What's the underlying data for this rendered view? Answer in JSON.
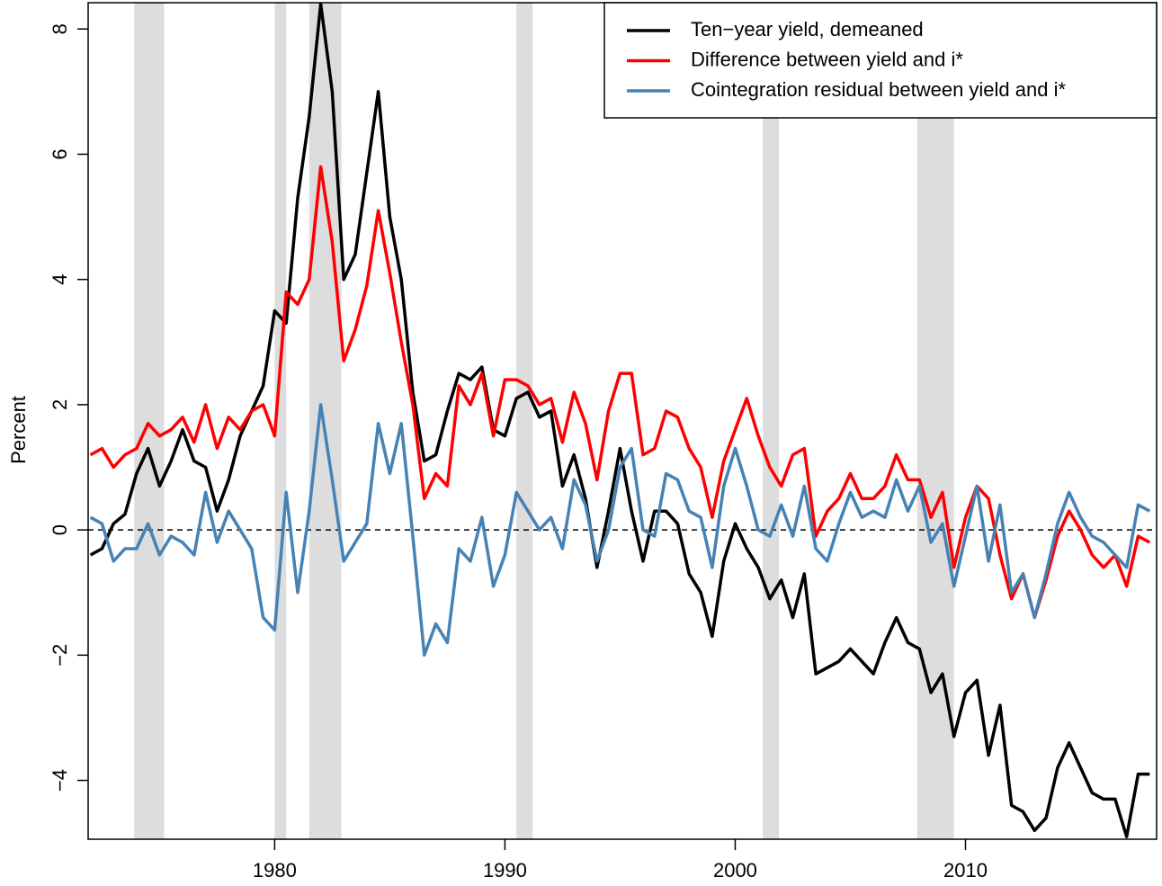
{
  "chart_data": {
    "type": "line",
    "ylabel": "Percent",
    "xlim": [
      1971.9,
      2018.3
    ],
    "ylim": [
      -4.94,
      8.42
    ],
    "xticks": [
      1980,
      1990,
      2000,
      2010
    ],
    "yticks": [
      {
        "value": -4,
        "label": "−4"
      },
      {
        "value": -2,
        "label": "−2"
      },
      0,
      2,
      4,
      6,
      8
    ],
    "hline": 0,
    "legend": "topright",
    "shading_color": "#dddddd",
    "recessions": [
      [
        1973.9,
        1975.2
      ],
      [
        1980.0,
        1980.5
      ],
      [
        1981.5,
        1982.9
      ],
      [
        1990.5,
        1991.2
      ],
      [
        2001.2,
        2001.9
      ],
      [
        2007.9,
        2009.5
      ]
    ],
    "x": [
      1972,
      1972.5,
      1973,
      1973.5,
      1974,
      1974.5,
      1975,
      1975.5,
      1976,
      1976.5,
      1977,
      1977.5,
      1978,
      1978.5,
      1979,
      1979.5,
      1980,
      1980.5,
      1981,
      1981.5,
      1982,
      1982.5,
      1983,
      1983.5,
      1984,
      1984.5,
      1985,
      1985.5,
      1986,
      1986.5,
      1987,
      1987.5,
      1988,
      1988.5,
      1989,
      1989.5,
      1990,
      1990.5,
      1991,
      1991.5,
      1992,
      1992.5,
      1993,
      1993.5,
      1994,
      1994.5,
      1995,
      1995.5,
      1996,
      1996.5,
      1997,
      1997.5,
      1998,
      1998.5,
      1999,
      1999.5,
      2000,
      2000.5,
      2001,
      2001.5,
      2002,
      2002.5,
      2003,
      2003.5,
      2004,
      2004.5,
      2005,
      2005.5,
      2006,
      2006.5,
      2007,
      2007.5,
      2008,
      2008.5,
      2009,
      2009.5,
      2010,
      2010.5,
      2011,
      2011.5,
      2012,
      2012.5,
      2013,
      2013.5,
      2014,
      2014.5,
      2015,
      2015.5,
      2016,
      2016.5,
      2017,
      2017.5,
      2018
    ],
    "series": [
      {
        "name": "Ten−year yield, demeaned",
        "color": "#000000",
        "values": [
          -0.4,
          -0.3,
          0.1,
          0.25,
          0.9,
          1.3,
          0.7,
          1.1,
          1.6,
          1.1,
          1.0,
          0.3,
          0.8,
          1.5,
          1.9,
          2.3,
          3.5,
          3.3,
          5.3,
          6.6,
          8.4,
          7.0,
          4.0,
          4.4,
          5.7,
          7.0,
          5.0,
          4.0,
          2.2,
          1.1,
          1.2,
          1.9,
          2.5,
          2.4,
          2.6,
          1.6,
          1.5,
          2.1,
          2.2,
          1.8,
          1.9,
          0.7,
          1.2,
          0.5,
          -0.6,
          0.3,
          1.3,
          0.3,
          -0.5,
          0.3,
          0.3,
          0.1,
          -0.7,
          -1.0,
          -1.7,
          -0.5,
          0.1,
          -0.3,
          -0.6,
          -1.1,
          -0.8,
          -1.4,
          -0.7,
          -2.3,
          -2.2,
          -2.1,
          -1.9,
          -2.1,
          -2.3,
          -1.8,
          -1.4,
          -1.8,
          -1.9,
          -2.6,
          -2.3,
          -3.3,
          -2.6,
          -2.4,
          -3.6,
          -2.8,
          -4.4,
          -4.5,
          -4.8,
          -4.6,
          -3.8,
          -3.4,
          -3.8,
          -4.2,
          -4.3,
          -4.3,
          -4.9,
          -3.9,
          -3.9
        ]
      },
      {
        "name": "Difference between yield and i*",
        "color": "#ff0000",
        "values": [
          1.2,
          1.3,
          1.0,
          1.2,
          1.3,
          1.7,
          1.5,
          1.6,
          1.8,
          1.4,
          2.0,
          1.3,
          1.8,
          1.6,
          1.9,
          2.0,
          1.5,
          3.8,
          3.6,
          4.0,
          5.8,
          4.6,
          2.7,
          3.2,
          3.9,
          5.1,
          4.1,
          3.0,
          2.0,
          0.5,
          0.9,
          0.7,
          2.3,
          2.0,
          2.5,
          1.5,
          2.4,
          2.4,
          2.3,
          2.0,
          2.1,
          1.4,
          2.2,
          1.7,
          0.8,
          1.9,
          2.5,
          2.5,
          1.2,
          1.3,
          1.9,
          1.8,
          1.3,
          1.0,
          0.2,
          1.1,
          1.6,
          2.1,
          1.5,
          1.0,
          0.7,
          1.2,
          1.3,
          -0.1,
          0.3,
          0.5,
          0.9,
          0.5,
          0.5,
          0.7,
          1.2,
          0.8,
          0.8,
          0.2,
          0.6,
          -0.6,
          0.2,
          0.7,
          0.5,
          -0.4,
          -1.1,
          -0.7,
          -1.4,
          -0.8,
          -0.1,
          0.3,
          0.0,
          -0.4,
          -0.6,
          -0.4,
          -0.9,
          -0.1,
          -0.2
        ]
      },
      {
        "name": "Cointegration residual between yield and i*",
        "color": "#4682b4",
        "values": [
          0.2,
          0.1,
          -0.5,
          -0.3,
          -0.3,
          0.1,
          -0.4,
          -0.1,
          -0.2,
          -0.4,
          0.6,
          -0.2,
          0.3,
          0.0,
          -0.3,
          -1.4,
          -1.6,
          0.6,
          -1.0,
          0.3,
          2.0,
          0.8,
          -0.5,
          -0.2,
          0.1,
          1.7,
          0.9,
          1.7,
          -0.1,
          -2.0,
          -1.5,
          -1.8,
          -0.3,
          -0.5,
          0.2,
          -0.9,
          -0.4,
          0.6,
          0.3,
          0.0,
          0.2,
          -0.3,
          0.8,
          0.4,
          -0.5,
          0.0,
          1.0,
          1.3,
          0.0,
          -0.1,
          0.9,
          0.8,
          0.3,
          0.2,
          -0.6,
          0.7,
          1.3,
          0.7,
          0.0,
          -0.1,
          0.4,
          -0.1,
          0.7,
          -0.3,
          -0.5,
          0.1,
          0.6,
          0.2,
          0.3,
          0.2,
          0.8,
          0.3,
          0.7,
          -0.2,
          0.1,
          -0.9,
          -0.1,
          0.7,
          -0.5,
          0.4,
          -1.0,
          -0.7,
          -1.4,
          -0.7,
          0.1,
          0.6,
          0.2,
          -0.1,
          -0.2,
          -0.4,
          -0.6,
          0.4,
          0.3
        ]
      }
    ]
  }
}
